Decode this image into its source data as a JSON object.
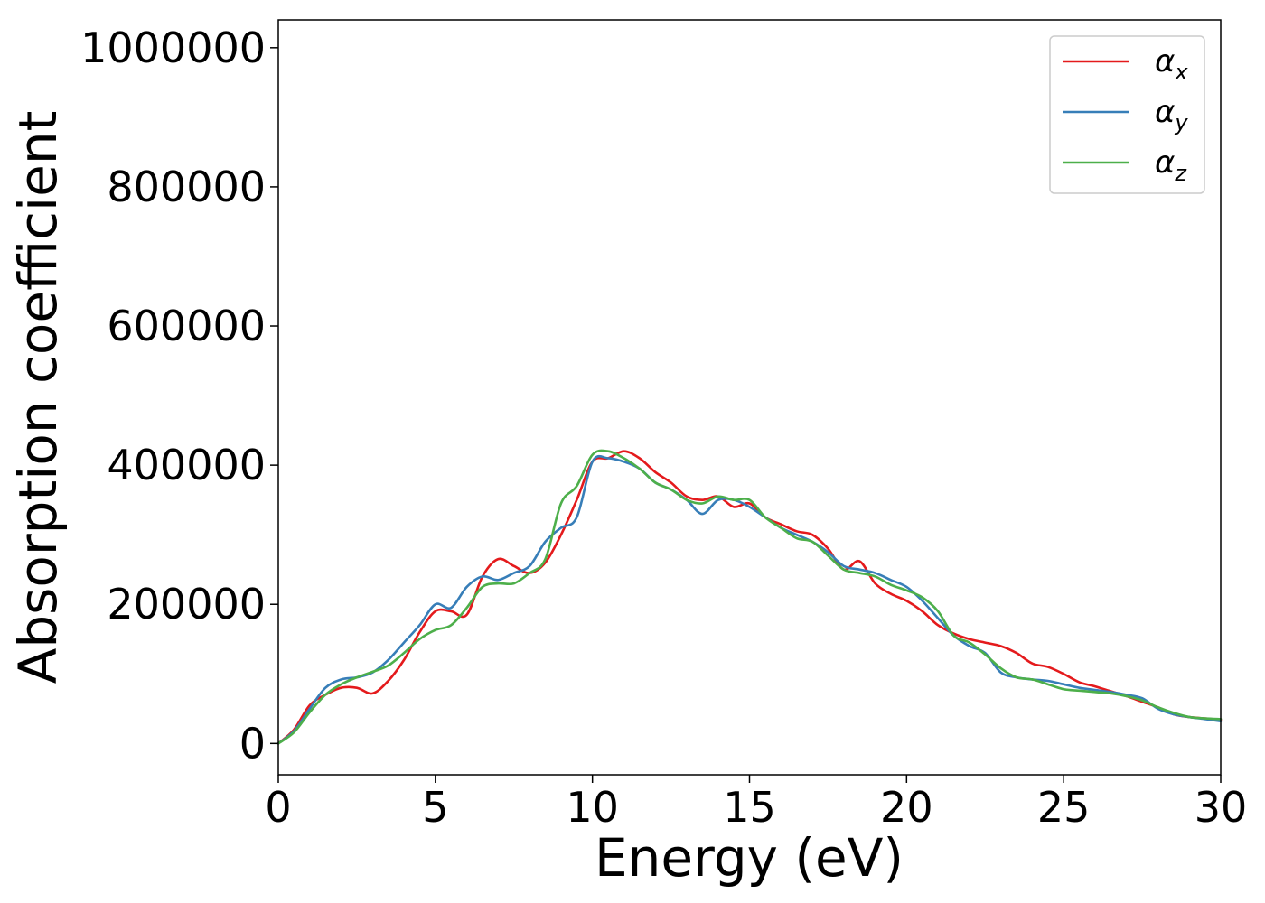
{
  "chart_data": {
    "type": "line",
    "title": "",
    "xlabel": "Energy (eV)",
    "ylabel": "Absorption coefficient",
    "xlim": [
      0,
      30
    ],
    "ylim": [
      -45000,
      1040000
    ],
    "xticks": [
      0,
      5,
      10,
      15,
      20,
      25,
      30
    ],
    "xtick_labels": [
      "0",
      "5",
      "10",
      "15",
      "20",
      "25",
      "30"
    ],
    "yticks": [
      0,
      200000,
      400000,
      600000,
      800000,
      1000000
    ],
    "ytick_labels": [
      "0",
      "200000",
      "400000",
      "600000",
      "800000",
      "1000000"
    ],
    "grid": false,
    "legend_position": "top-right",
    "legend": [
      {
        "symbol": "α",
        "sub": "x",
        "color": "#e41a1c"
      },
      {
        "symbol": "α",
        "sub": "y",
        "color": "#377eb8"
      },
      {
        "symbol": "α",
        "sub": "z",
        "color": "#4daf4a"
      }
    ],
    "x": [
      0,
      0.5,
      1,
      1.5,
      2,
      2.5,
      3,
      3.5,
      4,
      4.5,
      5,
      5.5,
      6,
      6.5,
      7,
      7.5,
      8,
      8.5,
      9,
      9.5,
      10,
      10.5,
      11,
      11.5,
      12,
      12.5,
      13,
      13.5,
      14,
      14.5,
      15,
      15.5,
      16,
      16.5,
      17,
      17.5,
      18,
      18.5,
      19,
      19.5,
      20,
      20.5,
      21,
      21.5,
      22,
      22.5,
      23,
      23.5,
      24,
      24.5,
      25,
      25.5,
      26,
      26.5,
      27,
      27.5,
      28,
      28.5,
      29,
      29.5,
      30
    ],
    "series": [
      {
        "name": "αx",
        "color": "#e41a1c",
        "values": [
          0,
          20000,
          55000,
          70000,
          80000,
          80000,
          72000,
          90000,
          120000,
          160000,
          190000,
          190000,
          185000,
          240000,
          265000,
          255000,
          245000,
          260000,
          300000,
          350000,
          405000,
          410000,
          420000,
          410000,
          390000,
          375000,
          355000,
          350000,
          355000,
          340000,
          345000,
          325000,
          315000,
          305000,
          300000,
          280000,
          250000,
          262000,
          230000,
          215000,
          205000,
          190000,
          170000,
          158000,
          150000,
          145000,
          140000,
          130000,
          115000,
          110000,
          100000,
          88000,
          82000,
          75000,
          68000,
          60000,
          52000,
          42000,
          38000,
          36000,
          34000
        ]
      },
      {
        "name": "αy",
        "color": "#377eb8",
        "values": [
          0,
          18000,
          50000,
          80000,
          92000,
          95000,
          102000,
          120000,
          145000,
          170000,
          200000,
          195000,
          225000,
          240000,
          235000,
          245000,
          255000,
          290000,
          310000,
          325000,
          405000,
          410000,
          405000,
          395000,
          375000,
          365000,
          350000,
          330000,
          350000,
          350000,
          340000,
          325000,
          310000,
          300000,
          290000,
          275000,
          255000,
          250000,
          245000,
          235000,
          225000,
          205000,
          180000,
          155000,
          140000,
          130000,
          102000,
          95000,
          92000,
          90000,
          85000,
          80000,
          77000,
          74000,
          70000,
          65000,
          50000,
          42000,
          38000,
          35000,
          32000
        ]
      },
      {
        "name": "αz",
        "color": "#4daf4a",
        "values": [
          0,
          16000,
          45000,
          70000,
          85000,
          95000,
          103000,
          112000,
          130000,
          150000,
          163000,
          170000,
          195000,
          225000,
          230000,
          230000,
          245000,
          265000,
          345000,
          370000,
          415000,
          420000,
          410000,
          395000,
          375000,
          365000,
          350000,
          345000,
          355000,
          350000,
          350000,
          325000,
          310000,
          295000,
          290000,
          270000,
          250000,
          245000,
          240000,
          228000,
          220000,
          210000,
          190000,
          155000,
          145000,
          128000,
          108000,
          95000,
          92000,
          85000,
          78000,
          76000,
          74000,
          72000,
          68000,
          62000,
          52000,
          44000,
          38000,
          36000,
          35000
        ]
      }
    ]
  }
}
